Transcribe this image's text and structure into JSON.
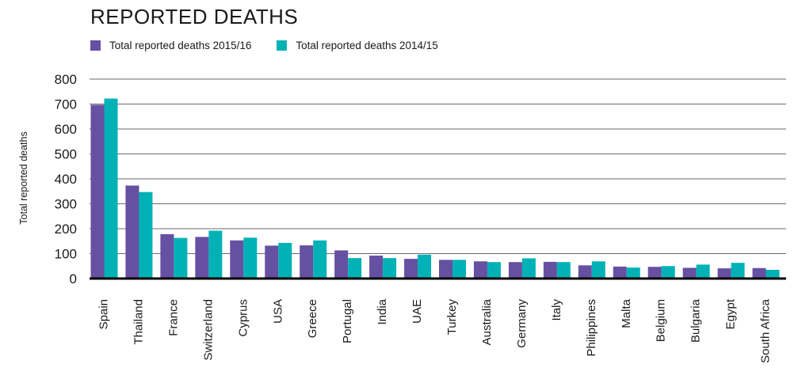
{
  "title": "REPORTED DEATHS",
  "legend": [
    {
      "label": "Total reported deaths 2015/16",
      "color": "#6650a2"
    },
    {
      "label": "Total reported deaths 2014/15",
      "color": "#00b2b5"
    }
  ],
  "chart_data": {
    "type": "bar",
    "title": "REPORTED DEATHS",
    "xlabel": "",
    "ylabel": "Total reported deaths",
    "ylim": [
      0,
      800
    ],
    "yticks": [
      0,
      100,
      200,
      300,
      400,
      500,
      600,
      700,
      800
    ],
    "grid": true,
    "legend_position": "top-left",
    "categories": [
      "Spain",
      "Thailand",
      "France",
      "Switzerland",
      "Cyprus",
      "USA",
      "Greece",
      "Portugal",
      "India",
      "UAE",
      "Turkey",
      "Australia",
      "Germany",
      "Italy",
      "Philippines",
      "Malta",
      "Belgium",
      "Bulgaria",
      "Egypt",
      "South Africa"
    ],
    "series": [
      {
        "name": "Total reported deaths 2015/16",
        "color": "#6650a2",
        "values": [
          697,
          373,
          178,
          167,
          153,
          132,
          133,
          113,
          92,
          79,
          75,
          69,
          66,
          67,
          53,
          48,
          47,
          43,
          41,
          42
        ]
      },
      {
        "name": "Total reported deaths 2014/15",
        "color": "#00b2b5",
        "values": [
          722,
          347,
          163,
          192,
          164,
          143,
          153,
          82,
          82,
          96,
          75,
          66,
          81,
          66,
          69,
          44,
          50,
          56,
          63,
          35
        ]
      }
    ]
  }
}
